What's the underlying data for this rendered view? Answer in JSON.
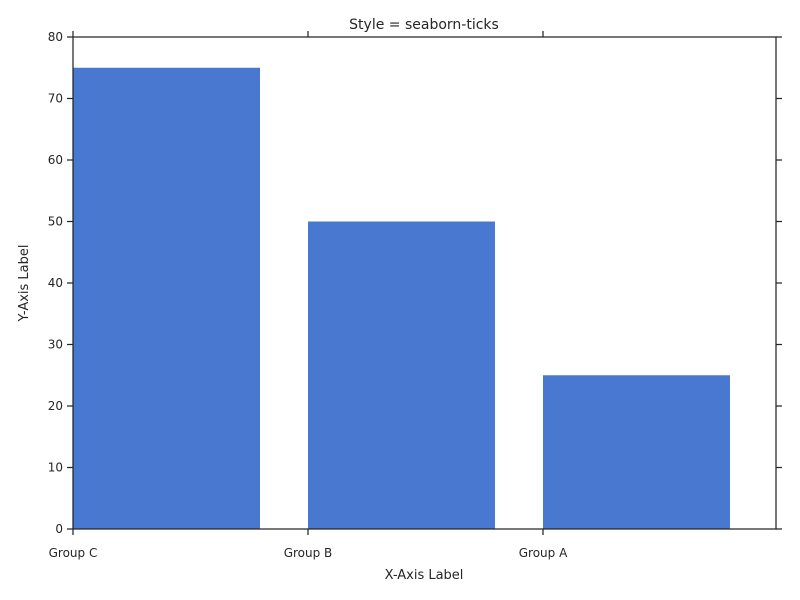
{
  "chart_data": {
    "type": "bar",
    "title": "Style = seaborn-ticks",
    "xlabel": "X-Axis Label",
    "ylabel": "Y-Axis Label",
    "categories": [
      "Group C",
      "Group B",
      "Group A"
    ],
    "values": [
      75,
      50,
      25
    ],
    "ylim": [
      0,
      80
    ],
    "yticks": [
      0,
      10,
      20,
      30,
      40,
      50,
      60,
      70,
      80
    ],
    "grid": false,
    "colors": {
      "bar": "#4878d0",
      "axis": "#262626",
      "text": "#262626",
      "background": "#ffffff"
    }
  }
}
